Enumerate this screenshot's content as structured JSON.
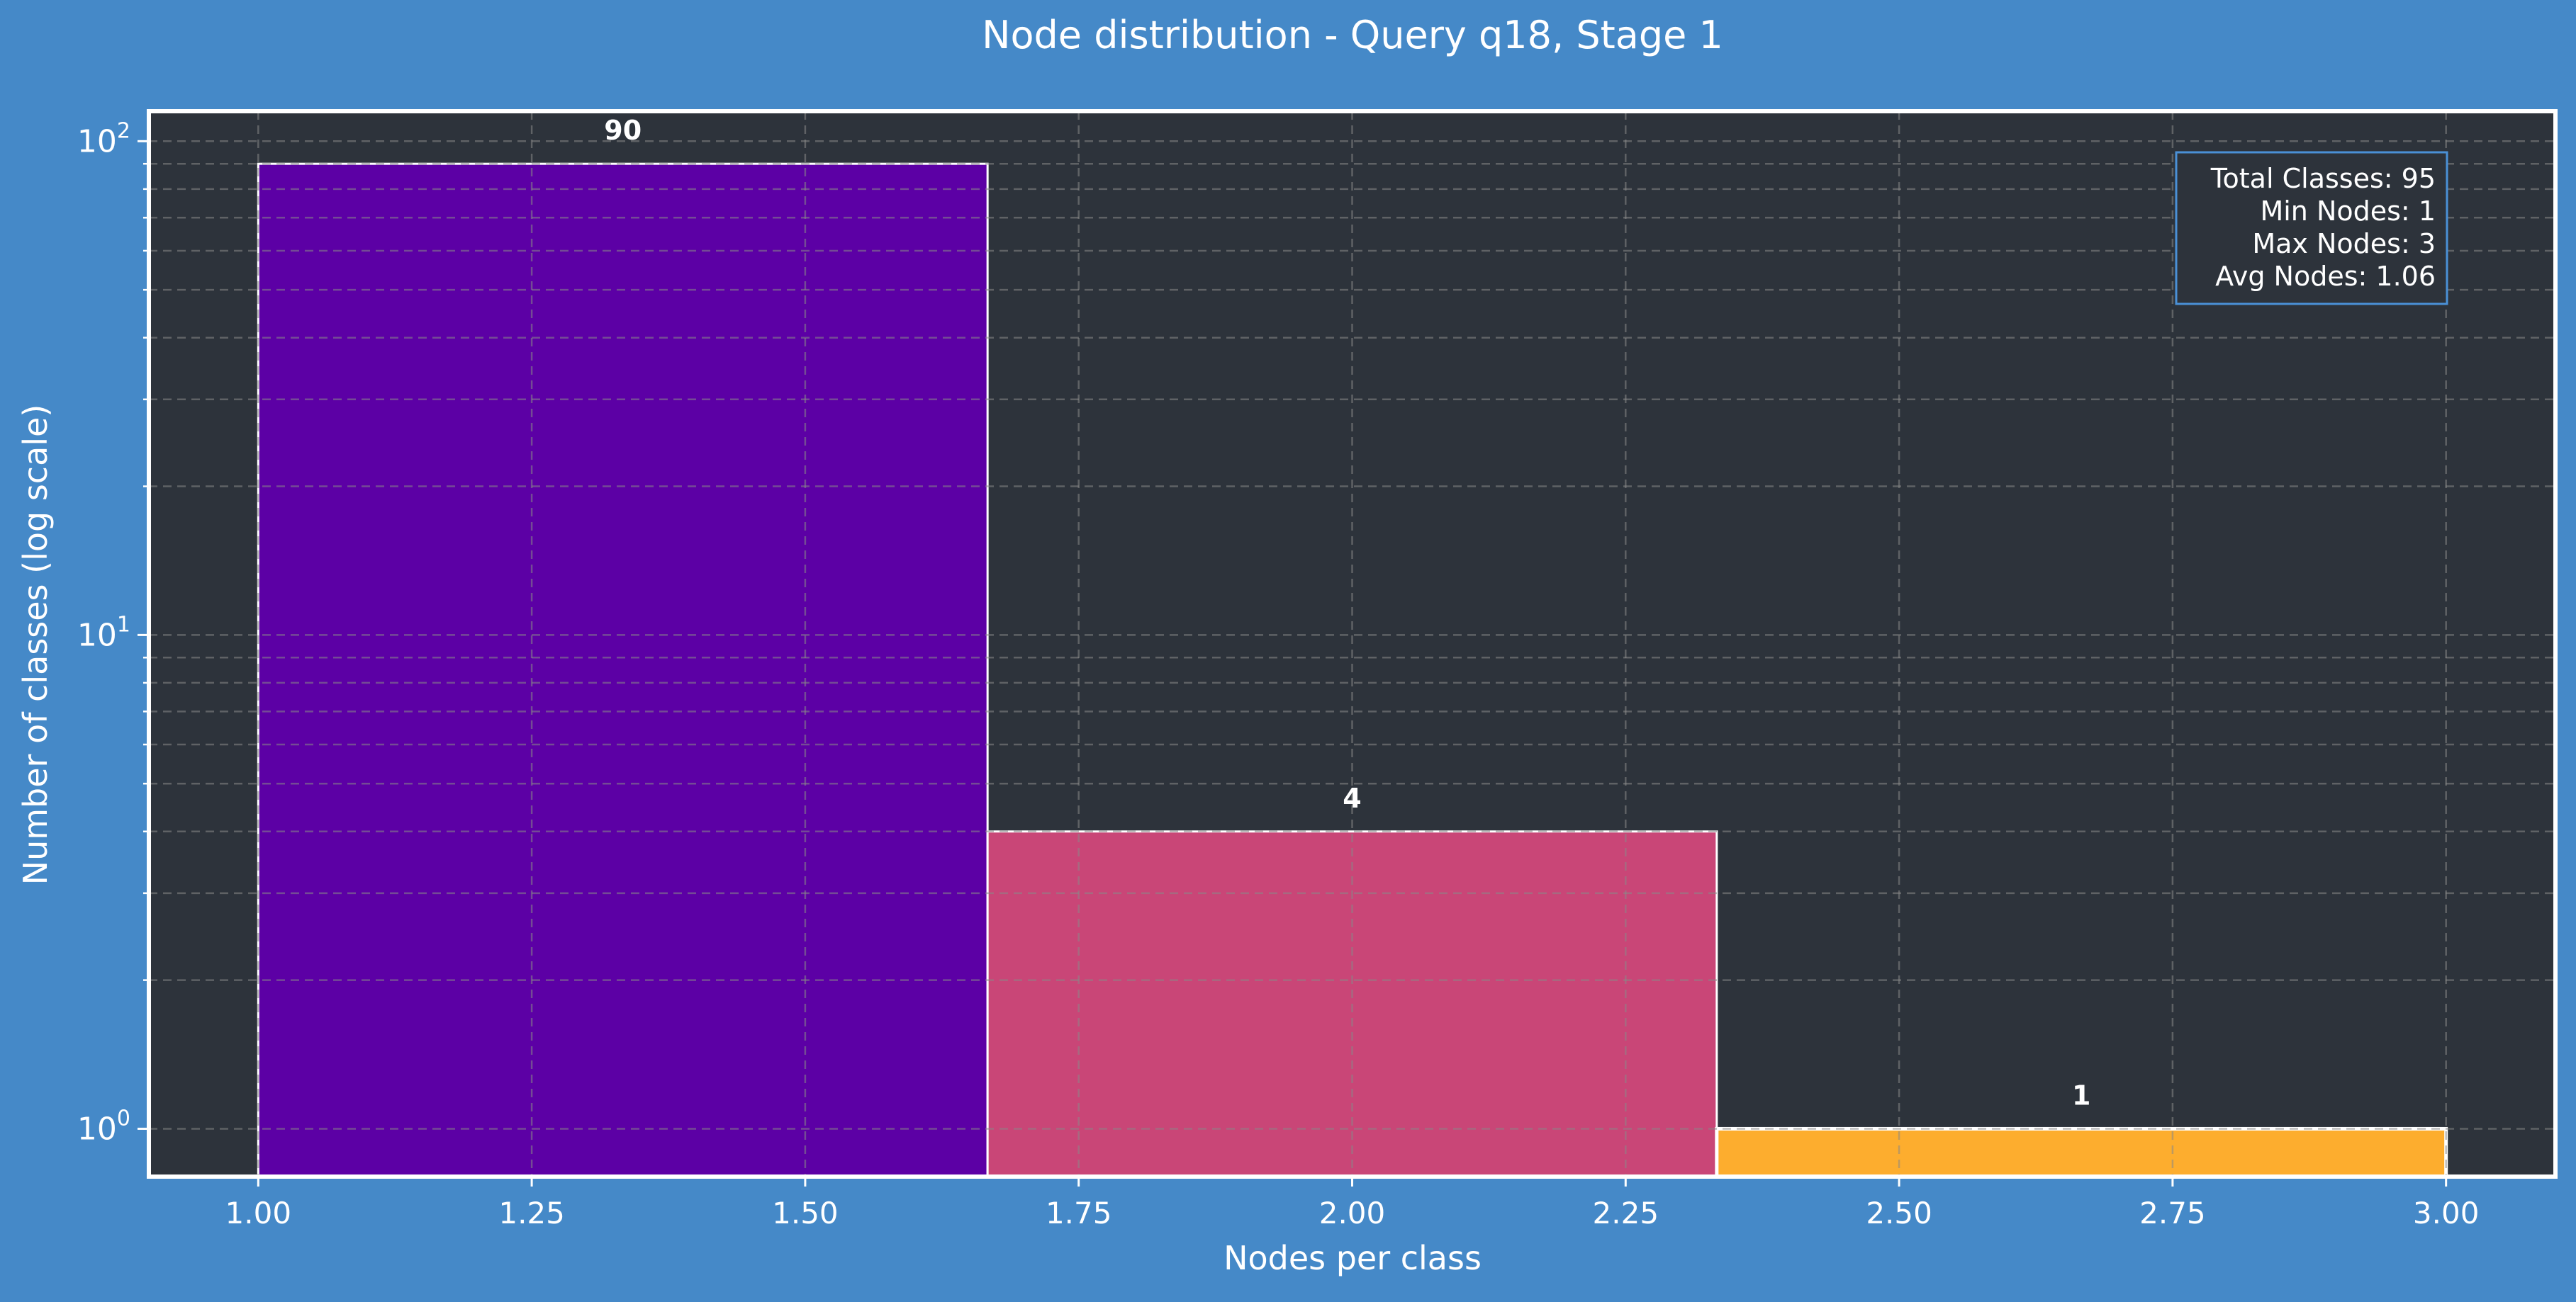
{
  "chart_data": {
    "type": "bar",
    "title": "Node distribution - Query q18, Stage 1",
    "xlabel": "Nodes per class",
    "ylabel": "Number of classes (log scale)",
    "yscale": "log",
    "xlim": [
      0.9,
      3.1
    ],
    "ylim": [
      0.8,
      115
    ],
    "grid": true,
    "bins": [
      {
        "x0": 1.0,
        "x1": 1.6667,
        "value": 90,
        "label": "90",
        "color": "#5c00a5"
      },
      {
        "x0": 1.6667,
        "x1": 2.3333,
        "value": 4,
        "label": "4",
        "color": "#c94677"
      },
      {
        "x0": 2.3333,
        "x1": 3.0,
        "value": 1,
        "label": "1",
        "color": "#fdad2e"
      }
    ],
    "x_ticks": [
      {
        "value": 1.0,
        "label": "1.00"
      },
      {
        "value": 1.25,
        "label": "1.25"
      },
      {
        "value": 1.5,
        "label": "1.50"
      },
      {
        "value": 1.75,
        "label": "1.75"
      },
      {
        "value": 2.0,
        "label": "2.00"
      },
      {
        "value": 2.25,
        "label": "2.25"
      },
      {
        "value": 2.5,
        "label": "2.50"
      },
      {
        "value": 2.75,
        "label": "2.75"
      },
      {
        "value": 3.0,
        "label": "3.00"
      }
    ],
    "y_ticks": [
      {
        "value": 1,
        "base": "10",
        "exp": "0"
      },
      {
        "value": 10,
        "base": "10",
        "exp": "1"
      },
      {
        "value": 100,
        "base": "10",
        "exp": "2"
      }
    ],
    "stats_box": {
      "position": "top-right",
      "lines": [
        "Total Classes: 95",
        "Min Nodes: 1",
        "Max Nodes: 3",
        "Avg Nodes: 1.06"
      ]
    },
    "colors": {
      "figure_background": "#4589c8",
      "plot_background": "#2d333b",
      "text": "#ffffff",
      "grid": "#888888",
      "stats_border": "#4a90d6"
    }
  }
}
